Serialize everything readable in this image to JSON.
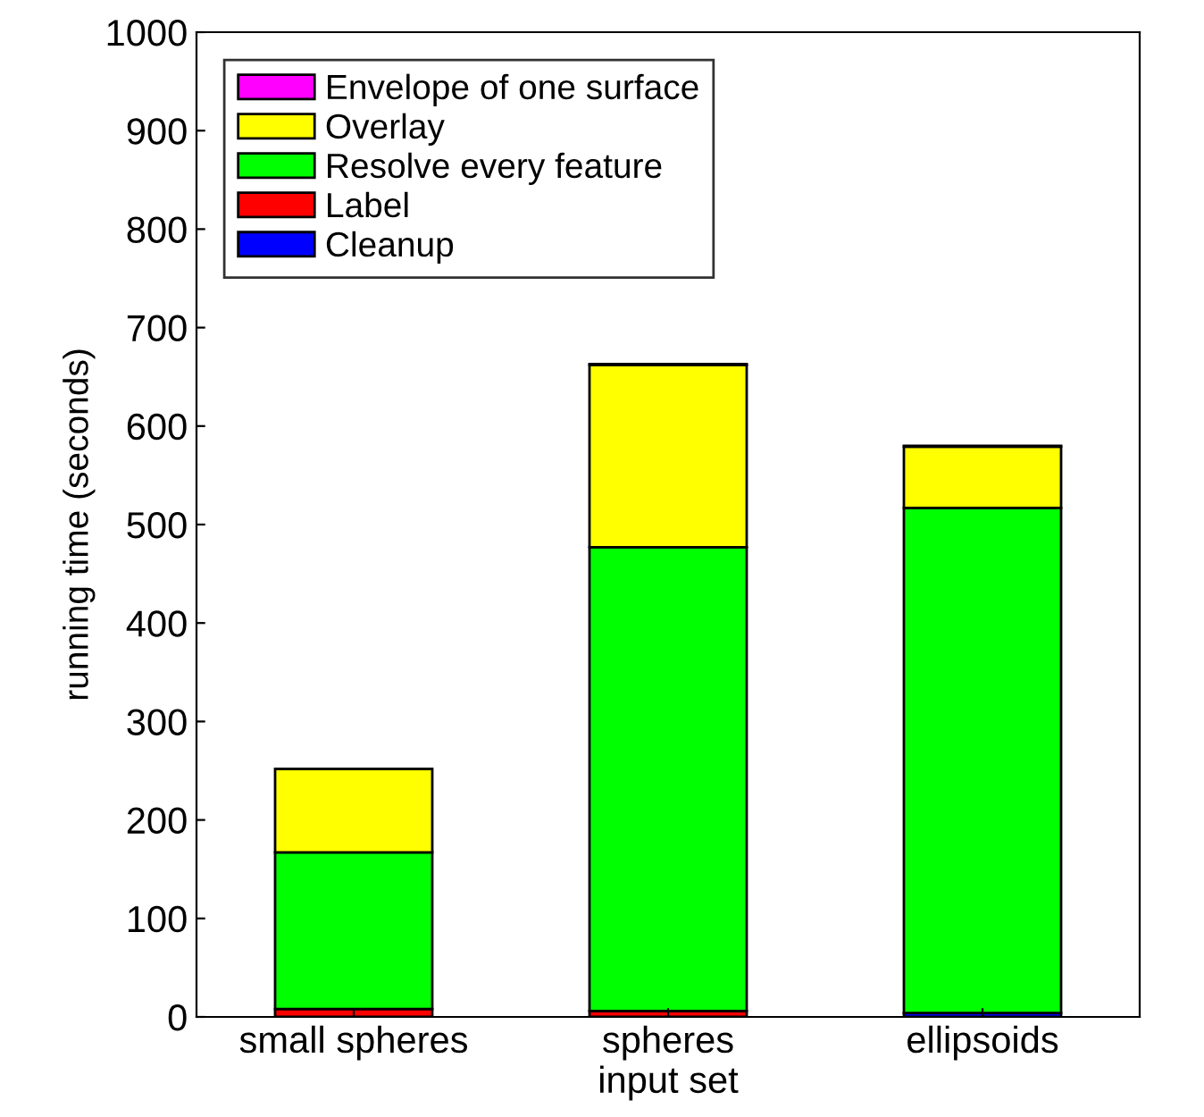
{
  "chart_data": {
    "type": "bar",
    "stacked": true,
    "ylabel": "running time (seconds)",
    "categories": [
      "small spheres",
      "spheres\ninput set",
      "ellipsoids"
    ],
    "ylim": [
      0,
      1000
    ],
    "yticks": [
      0,
      100,
      200,
      300,
      400,
      500,
      600,
      700,
      800,
      900,
      1000
    ],
    "grid": false,
    "legend": "top left",
    "series": [
      {
        "name": "Cleanup",
        "color": "#0000ff",
        "values": [
          null,
          null,
          4
        ]
      },
      {
        "name": "Label",
        "color": "#ff0000",
        "values": [
          8,
          6,
          null
        ]
      },
      {
        "name": "Resolve every feature",
        "color": "#00ff00",
        "values": [
          159,
          471,
          513
        ]
      },
      {
        "name": "Overlay",
        "color": "#ffff00",
        "values": [
          85,
          185,
          62
        ]
      },
      {
        "name": "Envelope of one surface",
        "color": "#ff00ff",
        "values": [
          null,
          1,
          1
        ]
      }
    ]
  }
}
